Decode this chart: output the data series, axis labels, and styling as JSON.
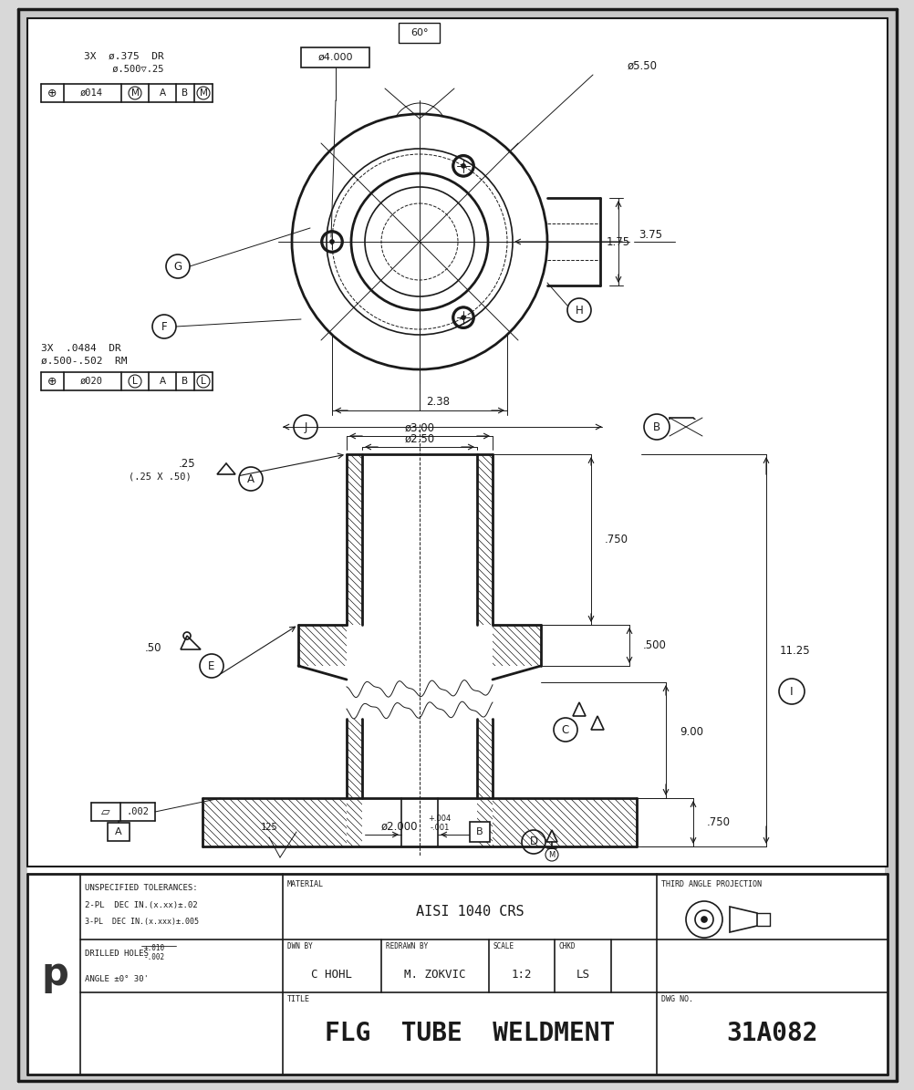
{
  "bg_color": "#e8e8e8",
  "line_color": "#1a1a1a",
  "title": "FLG  TUBE  WELDMENT",
  "dwg_no": "31A082",
  "material": "AISI 1040 CRS",
  "drawn_by": "C HOHL",
  "redrawn_by": "M. ZOKVIC",
  "scale": "1:2",
  "chkd": "LS"
}
